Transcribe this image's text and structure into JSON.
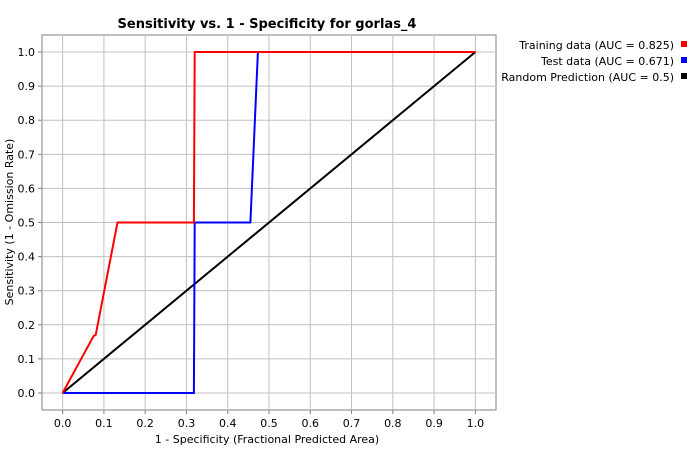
{
  "chart_data": {
    "type": "line",
    "title": "Sensitivity vs. 1 - Specificity for gorlas_4",
    "xlabel": "1 - Specificity  (Fractional Predicted Area)",
    "ylabel": "Sensitivity  (1 - Omission Rate)",
    "xlim": [
      -0.05,
      1.05
    ],
    "ylim": [
      -0.05,
      1.05
    ],
    "x_ticks": [
      "0.0",
      "0.1",
      "0.2",
      "0.3",
      "0.4",
      "0.5",
      "0.6",
      "0.7",
      "0.8",
      "0.9",
      "1.0"
    ],
    "y_ticks": [
      "0.0",
      "0.1",
      "0.2",
      "0.3",
      "0.4",
      "0.5",
      "0.6",
      "0.7",
      "0.8",
      "0.9",
      "1.0"
    ],
    "grid": true,
    "legend_position": "top-right (outside plot)",
    "series": [
      {
        "name": "Training data (AUC = 0.825)",
        "color": "#ff0000",
        "points": [
          [
            0.0,
            0.0
          ],
          [
            0.075,
            0.167
          ],
          [
            0.08,
            0.17
          ],
          [
            0.133,
            0.5
          ],
          [
            0.318,
            0.5
          ],
          [
            0.32,
            1.0
          ],
          [
            1.0,
            1.0
          ]
        ]
      },
      {
        "name": "Test data (AUC = 0.671)",
        "color": "#0000ff",
        "points": [
          [
            0.0,
            0.0
          ],
          [
            0.318,
            0.0
          ],
          [
            0.32,
            0.5
          ],
          [
            0.455,
            0.5
          ],
          [
            0.473,
            1.0
          ],
          [
            1.0,
            1.0
          ]
        ]
      },
      {
        "name": "Random Prediction (AUC = 0.5)",
        "color": "#000000",
        "points": [
          [
            0.0,
            0.0
          ],
          [
            1.0,
            1.0
          ]
        ]
      }
    ]
  }
}
